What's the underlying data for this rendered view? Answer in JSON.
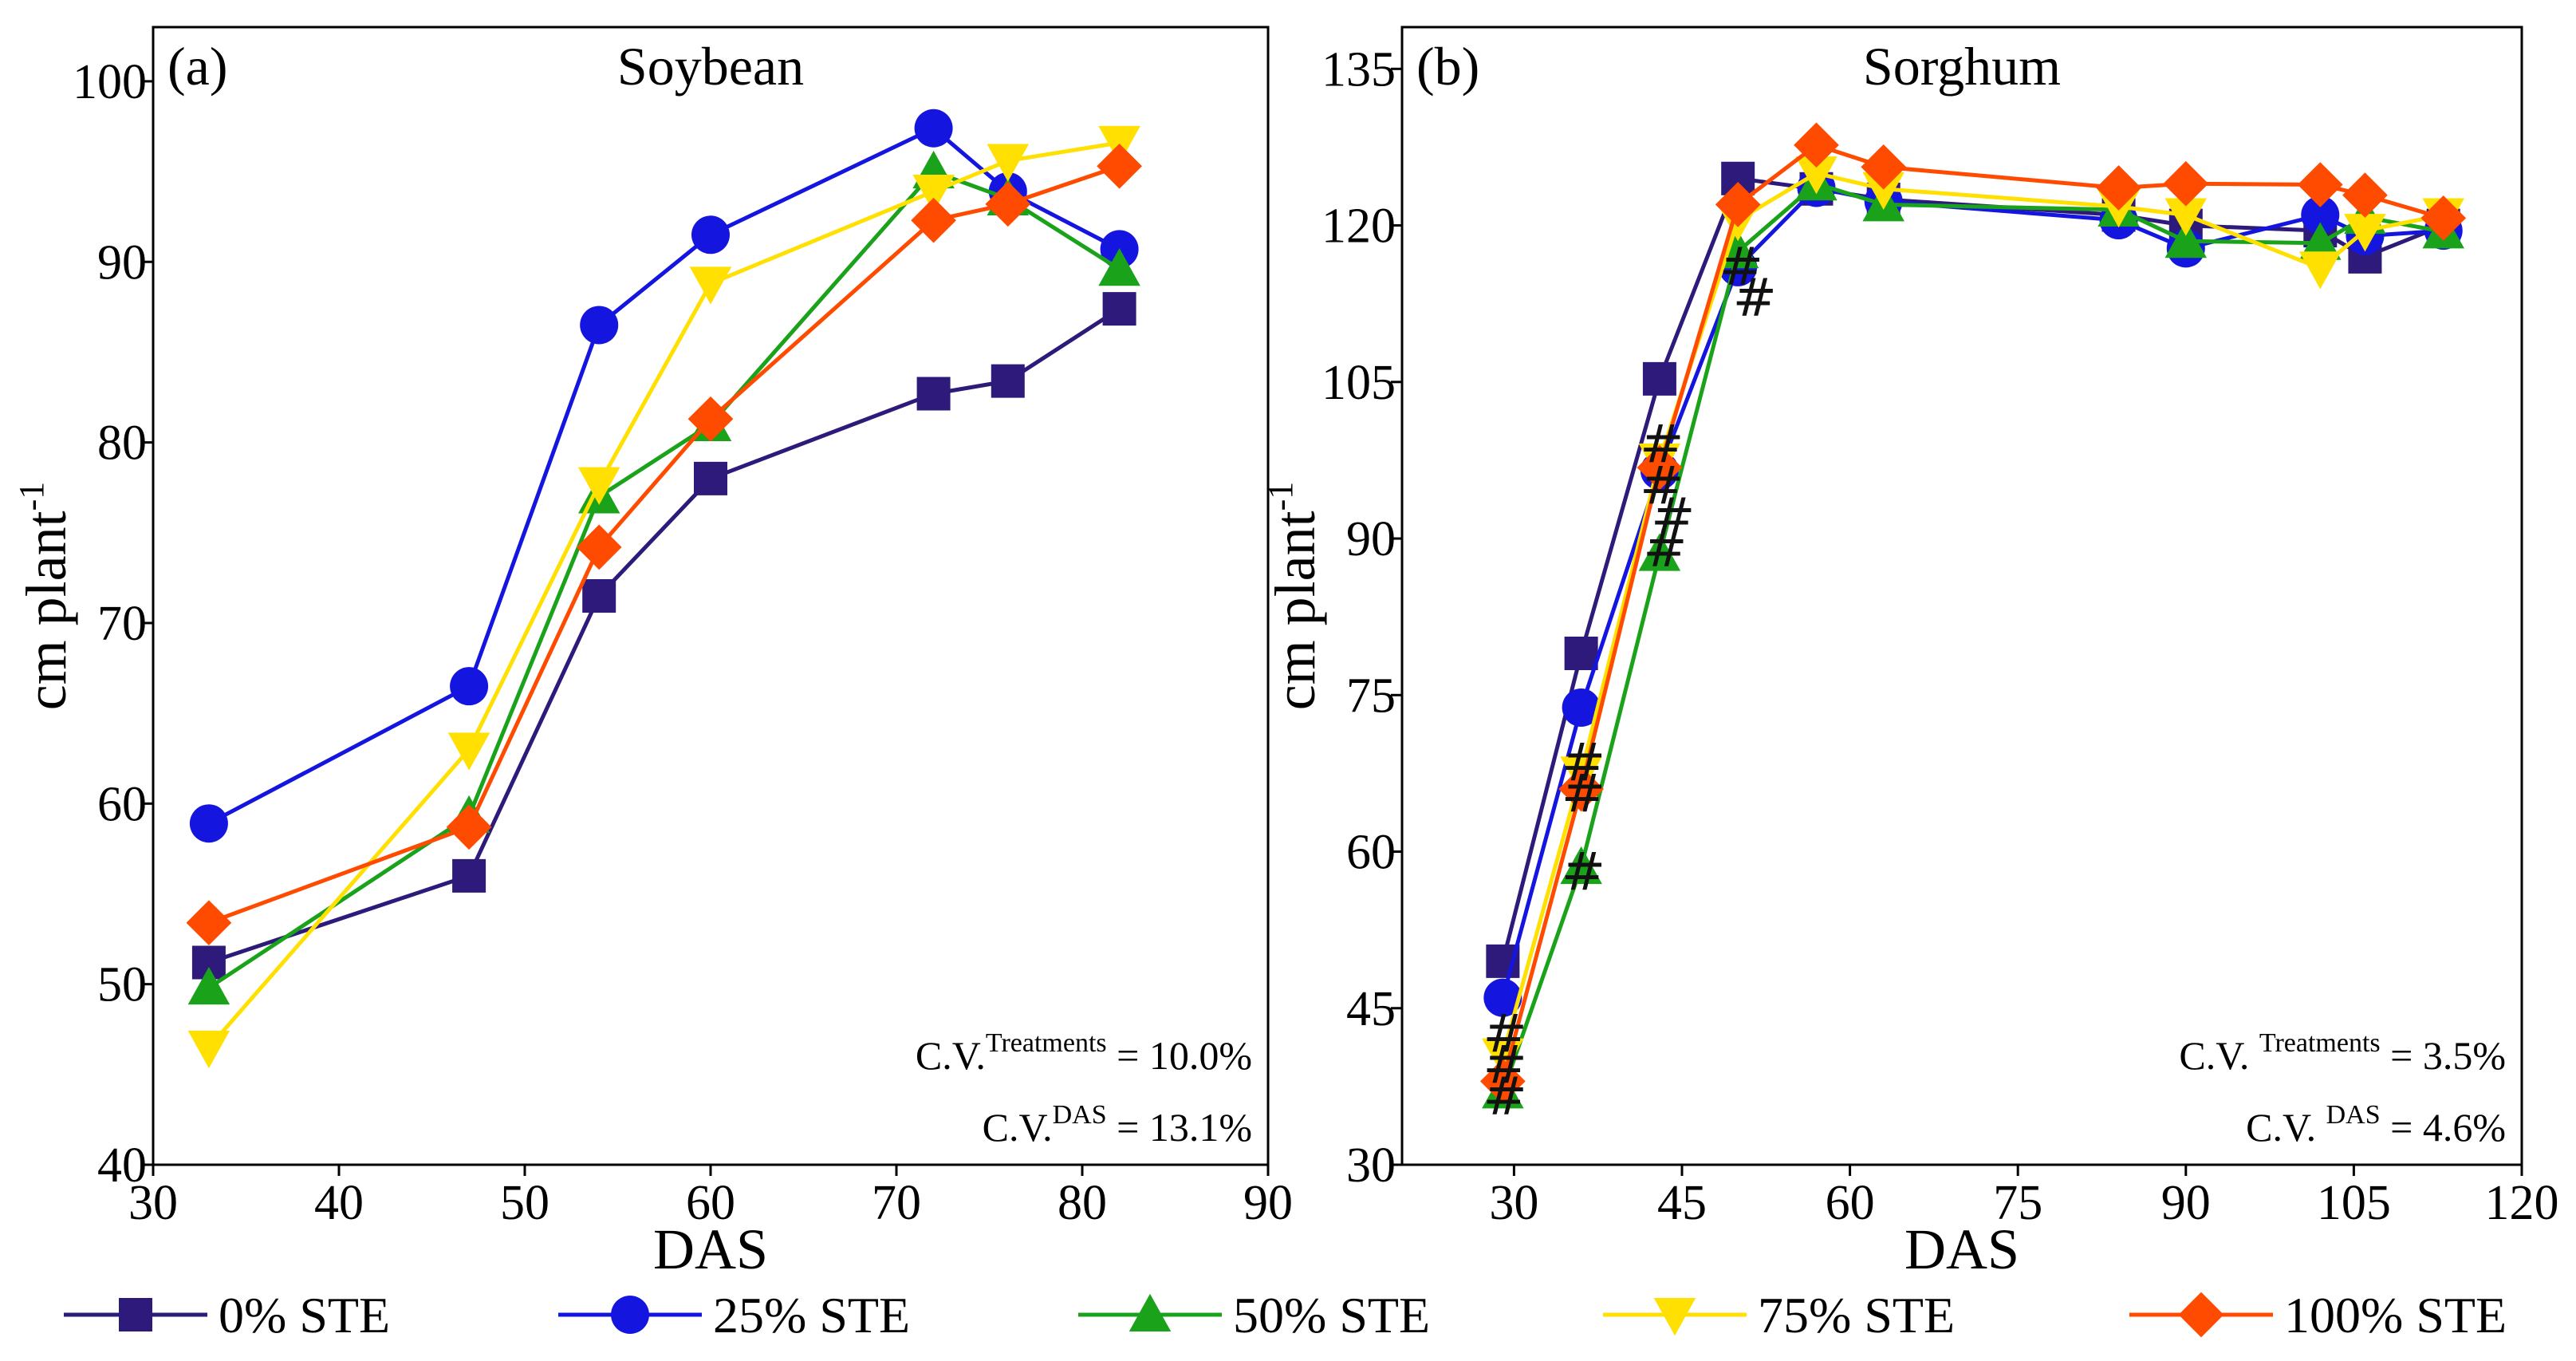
{
  "colors": {
    "s0": "#2e1a7a",
    "s25": "#1515e0",
    "s50": "#1aa31a",
    "s75": "#ffe000",
    "s100": "#ff4b00"
  },
  "legend": [
    {
      "key": "s0",
      "label": "0% STE",
      "marker": "square"
    },
    {
      "key": "s25",
      "label": "25% STE",
      "marker": "circle"
    },
    {
      "key": "s50",
      "label": "50% STE",
      "marker": "triangle-up"
    },
    {
      "key": "s75",
      "label": "75% STE",
      "marker": "triangle-down"
    },
    {
      "key": "s100",
      "label": "100% STE",
      "marker": "diamond"
    }
  ],
  "chart_data": [
    {
      "type": "line",
      "panel": "(a)",
      "title": "Soybean",
      "xlabel": "DAS",
      "ylabel": "cm plant",
      "ylabel_sup": "-1",
      "xlim": [
        30,
        90
      ],
      "ylim": [
        40,
        103
      ],
      "xticks": [
        30,
        40,
        50,
        60,
        70,
        80,
        90
      ],
      "yticks": [
        40,
        50,
        60,
        70,
        80,
        90,
        100
      ],
      "grid": false,
      "cv_treatments": {
        "prefix": "C.V.",
        "sup": "Treatments",
        "suffix": " = 10.0%"
      },
      "cv_das": {
        "prefix": "C.V.",
        "sup": "DAS",
        "suffix": " = 13.1%"
      },
      "x": [
        33,
        47,
        54,
        60,
        72,
        76,
        82
      ],
      "series": [
        {
          "key": "s0",
          "name": "0% STE",
          "values": [
            51.2,
            56.0,
            71.5,
            78.0,
            82.7,
            83.4,
            87.4
          ]
        },
        {
          "key": "s25",
          "name": "25% STE",
          "values": [
            58.9,
            66.5,
            86.5,
            91.5,
            97.4,
            93.9,
            90.7
          ]
        },
        {
          "key": "s50",
          "name": "50% STE",
          "values": [
            49.8,
            59.3,
            77.0,
            81.0,
            95.0,
            93.5,
            89.6
          ]
        },
        {
          "key": "s75",
          "name": "75% STE",
          "values": [
            46.5,
            63.0,
            77.7,
            88.8,
            93.9,
            95.6,
            96.6
          ]
        },
        {
          "key": "s100",
          "name": "100% STE",
          "values": [
            53.4,
            58.7,
            74.2,
            81.3,
            92.3,
            93.2,
            95.3
          ]
        }
      ],
      "annotations": []
    },
    {
      "type": "line",
      "panel": "(b)",
      "title": "Sorghum",
      "xlabel": "DAS",
      "ylabel": "cm plant",
      "ylabel_sup": "-1",
      "xlim": [
        20,
        120
      ],
      "ylim": [
        30,
        139
      ],
      "xticks": [
        30,
        45,
        60,
        75,
        90,
        105,
        120
      ],
      "yticks": [
        30,
        45,
        60,
        75,
        90,
        105,
        120,
        135
      ],
      "grid": false,
      "cv_treatments": {
        "prefix": "C.V. ",
        "sup": "Treatments",
        "suffix": " = 3.5%"
      },
      "cv_das": {
        "prefix": "C.V. ",
        "sup": "DAS",
        "suffix": " = 4.6%"
      },
      "x": [
        29,
        36,
        43,
        50,
        57,
        63,
        84,
        90,
        102,
        106,
        113
      ],
      "series": [
        {
          "key": "s0",
          "name": "0% STE",
          "values": [
            49.5,
            79.0,
            105.3,
            124.5,
            123.5,
            122.5,
            121.0,
            120.0,
            119.5,
            117.0,
            120.0
          ]
        },
        {
          "key": "s25",
          "name": "25% STE",
          "values": [
            46.0,
            73.8,
            96.5,
            116.0,
            123.6,
            122.3,
            120.5,
            117.8,
            121.0,
            119.0,
            119.5
          ]
        },
        {
          "key": "s50",
          "name": "50% STE",
          "values": [
            37.0,
            58.5,
            88.5,
            117.5,
            124.0,
            122.0,
            121.5,
            118.5,
            118.3,
            120.8,
            119.4
          ]
        },
        {
          "key": "s75",
          "name": "75% STE",
          "values": [
            40.5,
            67.5,
            97.5,
            120.5,
            125.0,
            123.5,
            121.8,
            121.0,
            115.9,
            119.5,
            121.0
          ]
        },
        {
          "key": "s100",
          "name": "100% STE",
          "values": [
            38.0,
            66.0,
            96.8,
            122.0,
            127.7,
            125.6,
            123.6,
            124.0,
            123.9,
            122.9,
            120.7
          ]
        }
      ],
      "annotations": [
        {
          "text": "#",
          "x": 29.2,
          "y": 42.5
        },
        {
          "text": "#",
          "x": 29.2,
          "y": 39.5
        },
        {
          "text": "#",
          "x": 29.2,
          "y": 36.5
        },
        {
          "text": "#",
          "x": 36.2,
          "y": 68.5
        },
        {
          "text": "#",
          "x": 36.2,
          "y": 65.5
        },
        {
          "text": "#",
          "x": 36.2,
          "y": 58.0
        },
        {
          "text": "#",
          "x": 43.2,
          "y": 99.0
        },
        {
          "text": "#",
          "x": 43.2,
          "y": 95.0
        },
        {
          "text": "#",
          "x": 43.5,
          "y": 89.0
        },
        {
          "text": "#",
          "x": 44.2,
          "y": 92.0
        },
        {
          "text": "#",
          "x": 50.3,
          "y": 116.0
        },
        {
          "text": "#",
          "x": 51.5,
          "y": 113.0
        }
      ]
    }
  ]
}
